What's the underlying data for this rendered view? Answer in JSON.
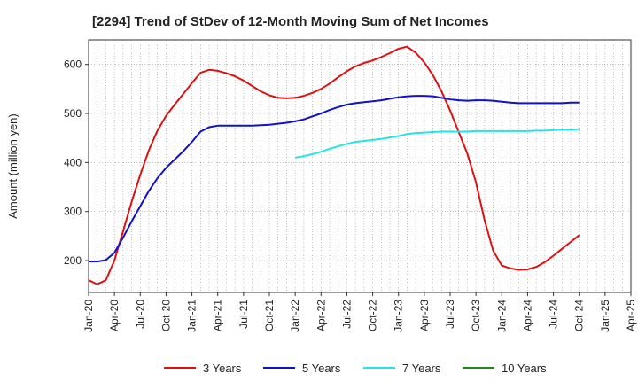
{
  "chart_data": {
    "type": "line",
    "title": "[2294]  Trend of StDev of 12-Month Moving Sum of Net Incomes",
    "ylabel": "Amount (million yen)",
    "xlabel": "",
    "ylim": [
      135,
      650
    ],
    "yticks": [
      200,
      300,
      400,
      500,
      600
    ],
    "x_categories": [
      "Jan-20",
      "Apr-20",
      "Jul-20",
      "Oct-20",
      "Jan-21",
      "Apr-21",
      "Jul-21",
      "Oct-21",
      "Jan-22",
      "Apr-22",
      "Jul-22",
      "Oct-22",
      "Jan-23",
      "Apr-23",
      "Jul-23",
      "Oct-23",
      "Jan-24",
      "Apr-24",
      "Jul-24",
      "Oct-24",
      "Jan-25",
      "Apr-25"
    ],
    "grid": true,
    "legend_position": "bottom",
    "series": [
      {
        "name": "3 Years",
        "color": "#dd1111",
        "points": [
          [
            "Jan-20",
            160
          ],
          [
            "Feb-20",
            152
          ],
          [
            "Mar-20",
            160
          ],
          [
            "Apr-20",
            200
          ],
          [
            "May-20",
            260
          ],
          [
            "Jun-20",
            320
          ],
          [
            "Jul-20",
            375
          ],
          [
            "Aug-20",
            425
          ],
          [
            "Sep-20",
            465
          ],
          [
            "Oct-20",
            495
          ],
          [
            "Nov-20",
            518
          ],
          [
            "Dec-20",
            540
          ],
          [
            "Jan-21",
            562
          ],
          [
            "Feb-21",
            583
          ],
          [
            "Mar-21",
            589
          ],
          [
            "Apr-21",
            587
          ],
          [
            "May-21",
            582
          ],
          [
            "Jun-21",
            576
          ],
          [
            "Jul-21",
            567
          ],
          [
            "Aug-21",
            556
          ],
          [
            "Sep-21",
            545
          ],
          [
            "Oct-21",
            537
          ],
          [
            "Nov-21",
            532
          ],
          [
            "Dec-21",
            531
          ],
          [
            "Jan-22",
            532
          ],
          [
            "Feb-22",
            536
          ],
          [
            "Mar-22",
            542
          ],
          [
            "Apr-22",
            550
          ],
          [
            "May-22",
            561
          ],
          [
            "Jun-22",
            574
          ],
          [
            "Jul-22",
            586
          ],
          [
            "Aug-22",
            596
          ],
          [
            "Sep-22",
            603
          ],
          [
            "Oct-22",
            608
          ],
          [
            "Nov-22",
            615
          ],
          [
            "Dec-22",
            623
          ],
          [
            "Jan-23",
            632
          ],
          [
            "Feb-23",
            636
          ],
          [
            "Mar-23",
            624
          ],
          [
            "Apr-23",
            604
          ],
          [
            "May-23",
            578
          ],
          [
            "Jun-23",
            545
          ],
          [
            "Jul-23",
            506
          ],
          [
            "Aug-23",
            462
          ],
          [
            "Sep-23",
            418
          ],
          [
            "Oct-23",
            360
          ],
          [
            "Nov-23",
            282
          ],
          [
            "Dec-23",
            220
          ],
          [
            "Jan-24",
            190
          ],
          [
            "Feb-24",
            184
          ],
          [
            "Mar-24",
            181
          ],
          [
            "Apr-24",
            182
          ],
          [
            "May-24",
            187
          ],
          [
            "Jun-24",
            197
          ],
          [
            "Jul-24",
            210
          ],
          [
            "Aug-24",
            224
          ],
          [
            "Sep-24",
            238
          ],
          [
            "Oct-24",
            252
          ]
        ]
      },
      {
        "name": "5 Years",
        "color": "#1111cc",
        "points": [
          [
            "Jan-20",
            198
          ],
          [
            "Feb-20",
            198
          ],
          [
            "Mar-20",
            201
          ],
          [
            "Apr-20",
            216
          ],
          [
            "May-20",
            247
          ],
          [
            "Jun-20",
            280
          ],
          [
            "Jul-20",
            311
          ],
          [
            "Aug-20",
            342
          ],
          [
            "Sep-20",
            368
          ],
          [
            "Oct-20",
            389
          ],
          [
            "Nov-20",
            406
          ],
          [
            "Dec-20",
            423
          ],
          [
            "Jan-21",
            442
          ],
          [
            "Feb-21",
            463
          ],
          [
            "Mar-21",
            472
          ],
          [
            "Apr-21",
            475
          ],
          [
            "May-21",
            475
          ],
          [
            "Jun-21",
            475
          ],
          [
            "Jul-21",
            475
          ],
          [
            "Aug-21",
            475
          ],
          [
            "Sep-21",
            476
          ],
          [
            "Oct-21",
            477
          ],
          [
            "Nov-21",
            479
          ],
          [
            "Dec-21",
            481
          ],
          [
            "Jan-22",
            484
          ],
          [
            "Feb-22",
            488
          ],
          [
            "Mar-22",
            494
          ],
          [
            "Apr-22",
            500
          ],
          [
            "May-22",
            507
          ],
          [
            "Jun-22",
            513
          ],
          [
            "Jul-22",
            518
          ],
          [
            "Aug-22",
            521
          ],
          [
            "Sep-22",
            523
          ],
          [
            "Oct-22",
            525
          ],
          [
            "Nov-22",
            527
          ],
          [
            "Dec-22",
            530
          ],
          [
            "Jan-23",
            533
          ],
          [
            "Feb-23",
            535
          ],
          [
            "Mar-23",
            536
          ],
          [
            "Apr-23",
            536
          ],
          [
            "May-23",
            535
          ],
          [
            "Jun-23",
            532
          ],
          [
            "Jul-23",
            529
          ],
          [
            "Aug-23",
            527
          ],
          [
            "Sep-23",
            526
          ],
          [
            "Oct-23",
            527
          ],
          [
            "Nov-23",
            527
          ],
          [
            "Dec-23",
            526
          ],
          [
            "Jan-24",
            524
          ],
          [
            "Feb-24",
            522
          ],
          [
            "Mar-24",
            521
          ],
          [
            "Apr-24",
            521
          ],
          [
            "May-24",
            521
          ],
          [
            "Jun-24",
            521
          ],
          [
            "Jul-24",
            521
          ],
          [
            "Aug-24",
            521
          ],
          [
            "Sep-24",
            522
          ],
          [
            "Oct-24",
            522
          ]
        ]
      },
      {
        "name": "7 Years",
        "color": "#22e5e5",
        "points": [
          [
            "Jan-22",
            410
          ],
          [
            "Feb-22",
            413
          ],
          [
            "Mar-22",
            417
          ],
          [
            "Apr-22",
            422
          ],
          [
            "May-22",
            428
          ],
          [
            "Jun-22",
            433
          ],
          [
            "Jul-22",
            438
          ],
          [
            "Aug-22",
            442
          ],
          [
            "Sep-22",
            444
          ],
          [
            "Oct-22",
            446
          ],
          [
            "Nov-22",
            448
          ],
          [
            "Dec-22",
            451
          ],
          [
            "Jan-23",
            454
          ],
          [
            "Feb-23",
            458
          ],
          [
            "Mar-23",
            460
          ],
          [
            "Apr-23",
            461
          ],
          [
            "May-23",
            462
          ],
          [
            "Jun-23",
            463
          ],
          [
            "Jul-23",
            463
          ],
          [
            "Aug-23",
            463
          ],
          [
            "Sep-23",
            463
          ],
          [
            "Oct-23",
            464
          ],
          [
            "Nov-23",
            464
          ],
          [
            "Dec-23",
            464
          ],
          [
            "Jan-24",
            464
          ],
          [
            "Feb-24",
            464
          ],
          [
            "Mar-24",
            464
          ],
          [
            "Apr-24",
            464
          ],
          [
            "May-24",
            465
          ],
          [
            "Jun-24",
            465
          ],
          [
            "Jul-24",
            466
          ],
          [
            "Aug-24",
            467
          ],
          [
            "Sep-24",
            467
          ],
          [
            "Oct-24",
            468
          ]
        ]
      },
      {
        "name": "10 Years",
        "color": "#228822",
        "points": []
      }
    ]
  }
}
